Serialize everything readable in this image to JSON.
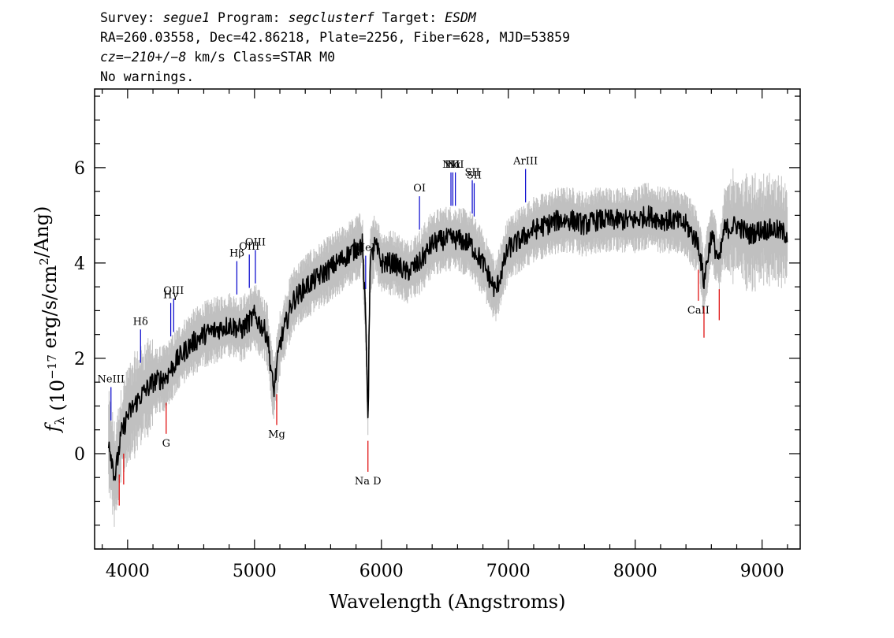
{
  "header": {
    "line1": {
      "survey_label": "Survey: ",
      "survey": "segue1",
      "program_label": " Program: ",
      "program": "segclusterf",
      "target_label": " Target: ",
      "target": "ESDM"
    },
    "line2": "RA=260.03558, Dec=42.86218, Plate=2256, Fiber=628, MJD=53859",
    "line3": {
      "cz": "cz=−210+/−8",
      "rest": " km/s Class=STAR M0"
    },
    "line4": "No warnings."
  },
  "chart_data": {
    "type": "line",
    "xlabel": "Wavelength (Angstroms)",
    "ylabel": "f_λ (10^-17 erg/s/cm^2/Ang)",
    "xlim": [
      3740,
      9300
    ],
    "ylim": [
      -2.0,
      7.65
    ],
    "xticks": [
      4000,
      5000,
      6000,
      7000,
      8000,
      9000
    ],
    "yticks": [
      0,
      2,
      4,
      6
    ],
    "colors": {
      "flux": "#000000",
      "error": "#c0c0c0",
      "emission": "#0000cc",
      "absorption": "#dd0000"
    },
    "series": [
      {
        "wavelength": [
          3850,
          3900,
          3950,
          4000,
          4100,
          4200,
          4300,
          4400,
          4500,
          4600,
          4700,
          4800,
          4900,
          5000,
          5100,
          5150,
          5200,
          5300,
          5400,
          5500,
          5600,
          5700,
          5800,
          5850,
          5880,
          5895,
          5910,
          5950,
          6000,
          6100,
          6200,
          6300,
          6400,
          6500,
          6600,
          6700,
          6800,
          6900,
          7000,
          7100,
          7200,
          7300,
          7400,
          7500,
          7600,
          7700,
          7800,
          7900,
          8000,
          8100,
          8200,
          8300,
          8400,
          8500,
          8540,
          8600,
          8662,
          8700,
          8800,
          8900,
          9000,
          9100,
          9200
        ],
        "flux": [
          0.3,
          -0.5,
          0.4,
          0.8,
          1.2,
          1.5,
          1.6,
          2.0,
          2.3,
          2.5,
          2.6,
          2.7,
          2.6,
          2.9,
          2.5,
          1.3,
          2.3,
          3.2,
          3.5,
          3.7,
          3.9,
          4.1,
          4.3,
          4.4,
          2.5,
          0.7,
          4.0,
          4.4,
          4.0,
          4.0,
          3.8,
          4.0,
          4.4,
          4.5,
          4.5,
          4.4,
          4.0,
          3.4,
          4.3,
          4.5,
          4.7,
          4.8,
          4.9,
          4.9,
          4.8,
          4.9,
          4.9,
          4.9,
          4.9,
          5.0,
          4.9,
          4.9,
          4.8,
          4.4,
          3.6,
          4.6,
          4.0,
          4.7,
          4.8,
          4.6,
          4.7,
          4.7,
          4.6
        ]
      }
    ],
    "emission_lines": [
      {
        "label": "NeIII",
        "wavelength": 3869
      },
      {
        "label": "Hδ",
        "wavelength": 4102
      },
      {
        "label": "Hγ",
        "wavelength": 4340
      },
      {
        "label": "OIII",
        "wavelength": 4363
      },
      {
        "label": "Hβ",
        "wavelength": 4861
      },
      {
        "label": "OIII",
        "wavelength": 4959
      },
      {
        "label": "OIII",
        "wavelength": 5007
      },
      {
        "label": "HeI",
        "wavelength": 5876
      },
      {
        "label": "OI",
        "wavelength": 6300
      },
      {
        "label": "NII",
        "wavelength": 6548
      },
      {
        "label": "Hα",
        "wavelength": 6563
      },
      {
        "label": "NII",
        "wavelength": 6583
      },
      {
        "label": "SII",
        "wavelength": 6716
      },
      {
        "label": "SII",
        "wavelength": 6731
      },
      {
        "label": "ArIII",
        "wavelength": 7136
      }
    ],
    "absorption_lines": [
      {
        "label": "",
        "wavelength": 3934
      },
      {
        "label": "",
        "wavelength": 3969
      },
      {
        "label": "G",
        "wavelength": 4304
      },
      {
        "label": "Mg",
        "wavelength": 5175
      },
      {
        "label": "Na D",
        "wavelength": 5894
      },
      {
        "label": "CaII",
        "wavelength": 8498
      },
      {
        "label": "",
        "wavelength": 8542
      },
      {
        "label": "",
        "wavelength": 8662
      }
    ]
  }
}
